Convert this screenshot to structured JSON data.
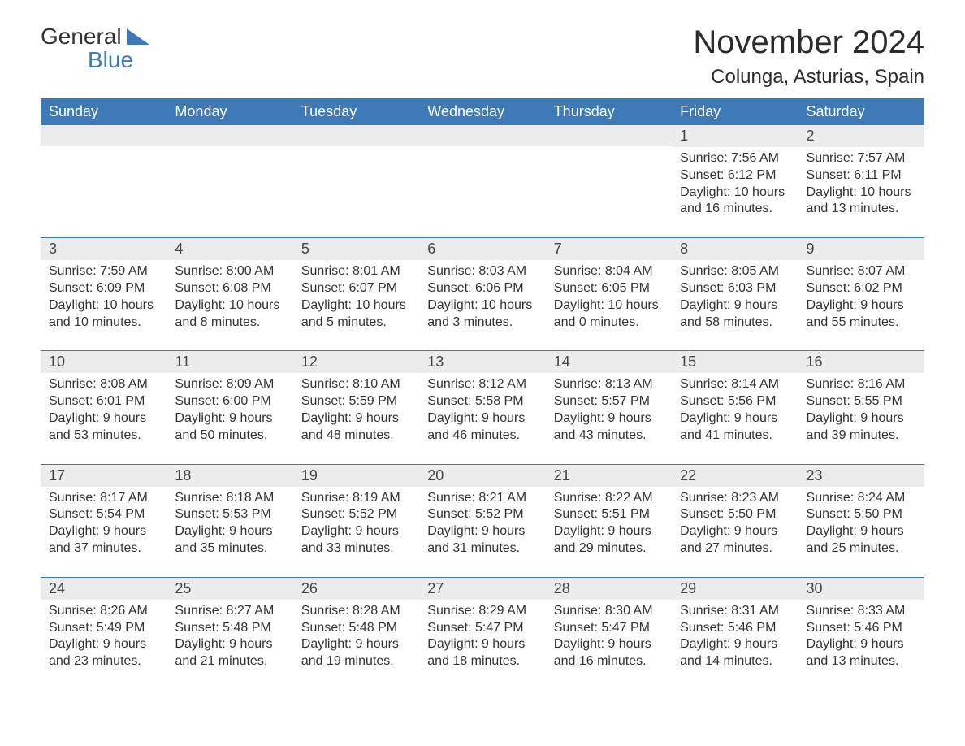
{
  "colors": {
    "header_bg": "#3d79b6",
    "header_text": "#ffffff",
    "daynum_bg": "#ececec",
    "body_text": "#333333",
    "row_border": "#3d79b6",
    "page_bg": "#ffffff",
    "logo_accent": "#3d79b6"
  },
  "typography": {
    "month_title_fontsize": 40,
    "location_fontsize": 24,
    "day_header_fontsize": 18,
    "daynum_fontsize": 18,
    "body_fontsize": 16,
    "font_family": "Arial"
  },
  "logo": {
    "text1": "General",
    "text2": "Blue"
  },
  "title": "November 2024",
  "location": "Colunga, Asturias, Spain",
  "day_headers": [
    "Sunday",
    "Monday",
    "Tuesday",
    "Wednesday",
    "Thursday",
    "Friday",
    "Saturday"
  ],
  "labels": {
    "sunrise": "Sunrise:",
    "sunset": "Sunset:",
    "daylight": "Daylight:"
  },
  "weeks": [
    [
      {
        "empty": true
      },
      {
        "empty": true
      },
      {
        "empty": true
      },
      {
        "empty": true
      },
      {
        "empty": true
      },
      {
        "day": "1",
        "sunrise": "7:56 AM",
        "sunset": "6:12 PM",
        "daylight": "10 hours and 16 minutes."
      },
      {
        "day": "2",
        "sunrise": "7:57 AM",
        "sunset": "6:11 PM",
        "daylight": "10 hours and 13 minutes."
      }
    ],
    [
      {
        "day": "3",
        "sunrise": "7:59 AM",
        "sunset": "6:09 PM",
        "daylight": "10 hours and 10 minutes."
      },
      {
        "day": "4",
        "sunrise": "8:00 AM",
        "sunset": "6:08 PM",
        "daylight": "10 hours and 8 minutes."
      },
      {
        "day": "5",
        "sunrise": "8:01 AM",
        "sunset": "6:07 PM",
        "daylight": "10 hours and 5 minutes."
      },
      {
        "day": "6",
        "sunrise": "8:03 AM",
        "sunset": "6:06 PM",
        "daylight": "10 hours and 3 minutes."
      },
      {
        "day": "7",
        "sunrise": "8:04 AM",
        "sunset": "6:05 PM",
        "daylight": "10 hours and 0 minutes."
      },
      {
        "day": "8",
        "sunrise": "8:05 AM",
        "sunset": "6:03 PM",
        "daylight": "9 hours and 58 minutes."
      },
      {
        "day": "9",
        "sunrise": "8:07 AM",
        "sunset": "6:02 PM",
        "daylight": "9 hours and 55 minutes."
      }
    ],
    [
      {
        "day": "10",
        "sunrise": "8:08 AM",
        "sunset": "6:01 PM",
        "daylight": "9 hours and 53 minutes."
      },
      {
        "day": "11",
        "sunrise": "8:09 AM",
        "sunset": "6:00 PM",
        "daylight": "9 hours and 50 minutes."
      },
      {
        "day": "12",
        "sunrise": "8:10 AM",
        "sunset": "5:59 PM",
        "daylight": "9 hours and 48 minutes."
      },
      {
        "day": "13",
        "sunrise": "8:12 AM",
        "sunset": "5:58 PM",
        "daylight": "9 hours and 46 minutes."
      },
      {
        "day": "14",
        "sunrise": "8:13 AM",
        "sunset": "5:57 PM",
        "daylight": "9 hours and 43 minutes."
      },
      {
        "day": "15",
        "sunrise": "8:14 AM",
        "sunset": "5:56 PM",
        "daylight": "9 hours and 41 minutes."
      },
      {
        "day": "16",
        "sunrise": "8:16 AM",
        "sunset": "5:55 PM",
        "daylight": "9 hours and 39 minutes."
      }
    ],
    [
      {
        "day": "17",
        "sunrise": "8:17 AM",
        "sunset": "5:54 PM",
        "daylight": "9 hours and 37 minutes."
      },
      {
        "day": "18",
        "sunrise": "8:18 AM",
        "sunset": "5:53 PM",
        "daylight": "9 hours and 35 minutes."
      },
      {
        "day": "19",
        "sunrise": "8:19 AM",
        "sunset": "5:52 PM",
        "daylight": "9 hours and 33 minutes."
      },
      {
        "day": "20",
        "sunrise": "8:21 AM",
        "sunset": "5:52 PM",
        "daylight": "9 hours and 31 minutes."
      },
      {
        "day": "21",
        "sunrise": "8:22 AM",
        "sunset": "5:51 PM",
        "daylight": "9 hours and 29 minutes."
      },
      {
        "day": "22",
        "sunrise": "8:23 AM",
        "sunset": "5:50 PM",
        "daylight": "9 hours and 27 minutes."
      },
      {
        "day": "23",
        "sunrise": "8:24 AM",
        "sunset": "5:50 PM",
        "daylight": "9 hours and 25 minutes."
      }
    ],
    [
      {
        "day": "24",
        "sunrise": "8:26 AM",
        "sunset": "5:49 PM",
        "daylight": "9 hours and 23 minutes."
      },
      {
        "day": "25",
        "sunrise": "8:27 AM",
        "sunset": "5:48 PM",
        "daylight": "9 hours and 21 minutes."
      },
      {
        "day": "26",
        "sunrise": "8:28 AM",
        "sunset": "5:48 PM",
        "daylight": "9 hours and 19 minutes."
      },
      {
        "day": "27",
        "sunrise": "8:29 AM",
        "sunset": "5:47 PM",
        "daylight": "9 hours and 18 minutes."
      },
      {
        "day": "28",
        "sunrise": "8:30 AM",
        "sunset": "5:47 PM",
        "daylight": "9 hours and 16 minutes."
      },
      {
        "day": "29",
        "sunrise": "8:31 AM",
        "sunset": "5:46 PM",
        "daylight": "9 hours and 14 minutes."
      },
      {
        "day": "30",
        "sunrise": "8:33 AM",
        "sunset": "5:46 PM",
        "daylight": "9 hours and 13 minutes."
      }
    ]
  ]
}
